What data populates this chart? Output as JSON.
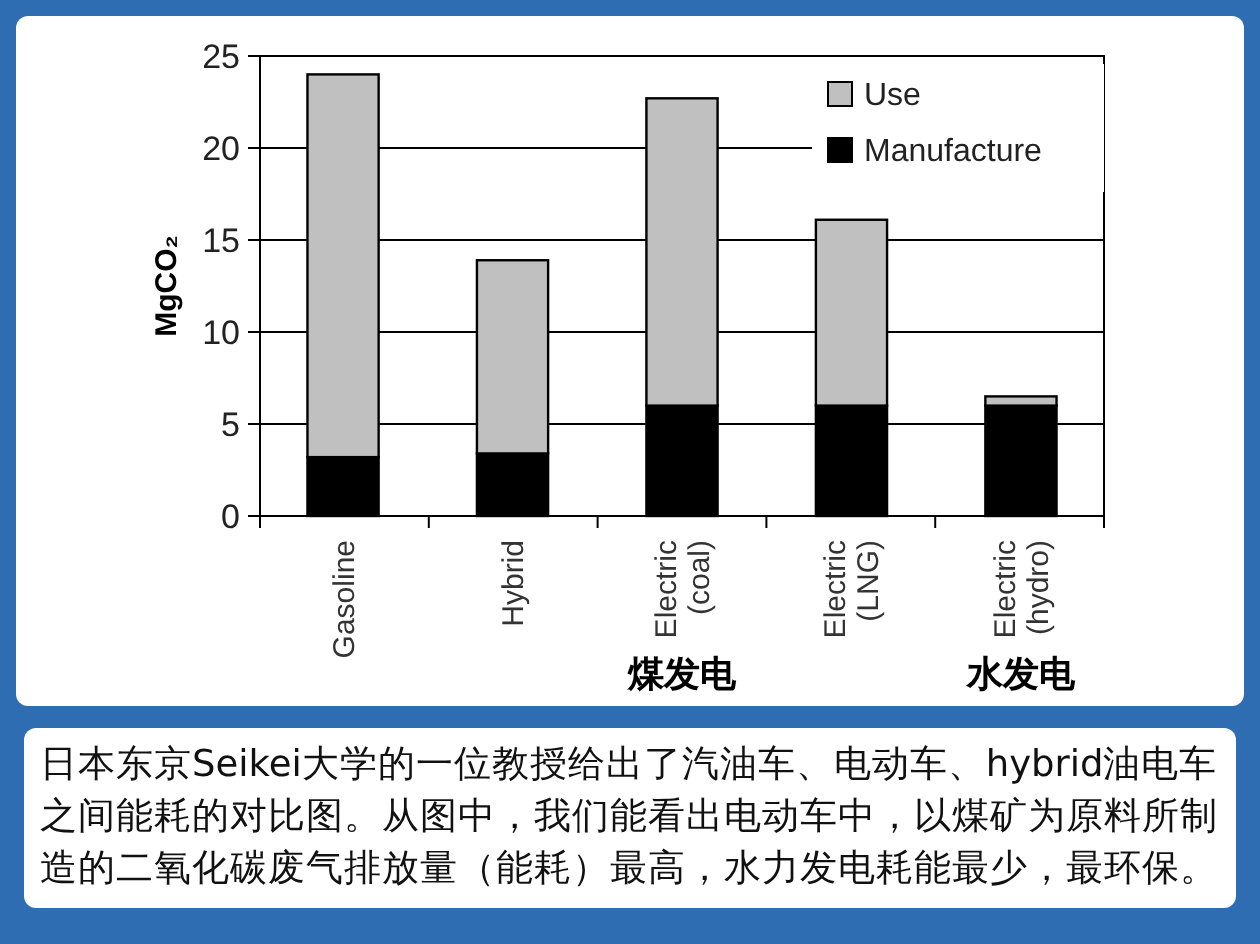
{
  "chart_data": {
    "type": "bar",
    "stacked": true,
    "ylabel": "MgCO₂",
    "categories": [
      "Gasoline",
      "Hybrid",
      "Electric (coal)",
      "Electric (LNG)",
      "Electric (hydro)"
    ],
    "series": [
      {
        "name": "Manufacture",
        "color": "#000000",
        "values": [
          3.2,
          3.4,
          6,
          6,
          6
        ]
      },
      {
        "name": "Use",
        "color": "#c0c0c0",
        "values": [
          20.8,
          10.5,
          16.7,
          10.1,
          0.5
        ]
      }
    ],
    "ylim": [
      0,
      25
    ],
    "yticks": [
      0,
      5,
      10,
      15,
      20,
      25
    ],
    "grid": "y",
    "legend": "top right",
    "annotations": [
      "煤发电",
      "水发电",
      "日本东京Seikei大学的一位教授给出了汽油车、电动车、hybrid油电车之间能耗的对比图。从图中，我们能看出电动车中，以煤矿为原料所制造的二氧化碳废气排放量（能耗）最高，水力发电耗能最少，最环保。"
    ]
  }
}
